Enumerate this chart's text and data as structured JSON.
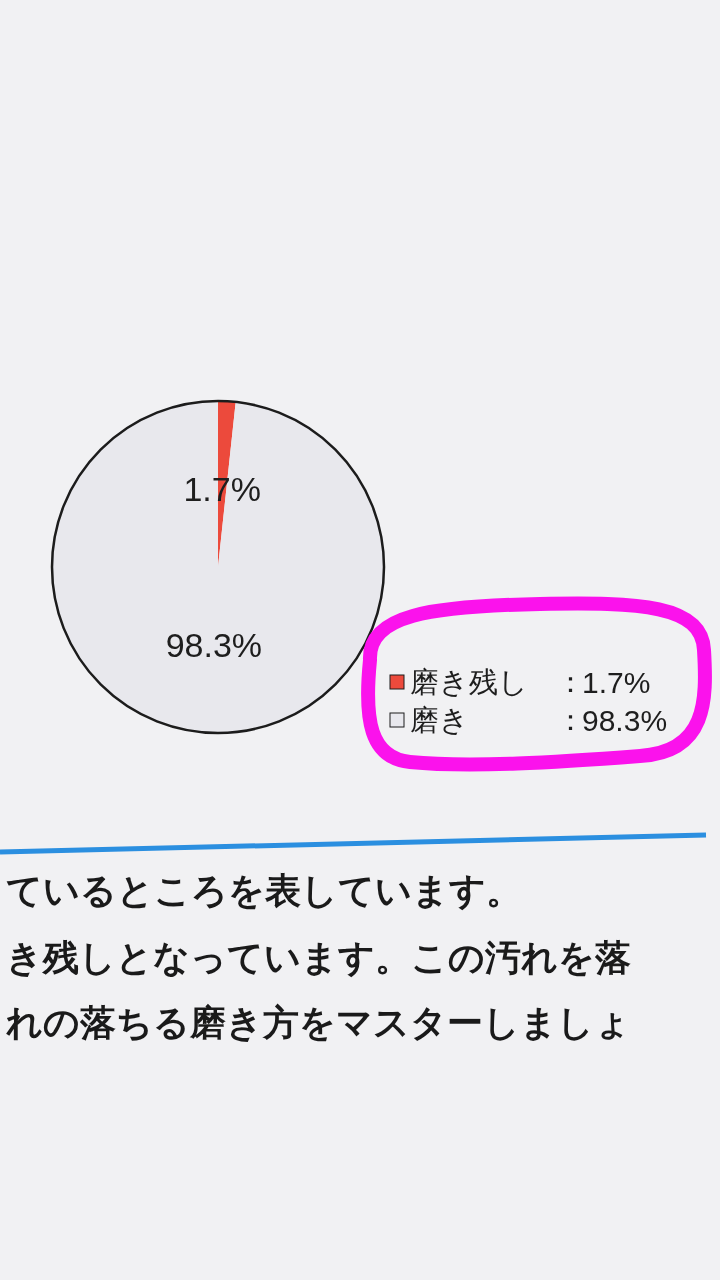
{
  "chart_data": {
    "type": "pie",
    "categories": [
      "磨き残し",
      "磨き"
    ],
    "values": [
      1.7,
      98.3
    ],
    "colors": [
      "#ec4a3c",
      "#e8e8ed"
    ],
    "value_labels": [
      "1.7%",
      "98.3%"
    ],
    "legend": "bottom right",
    "annotations": [
      "：",
      "：",
      "ているところを表しています。",
      "き残しとなっています。この汚れを落",
      "れの落ちる磨き方をマスターしましょ"
    ]
  }
}
